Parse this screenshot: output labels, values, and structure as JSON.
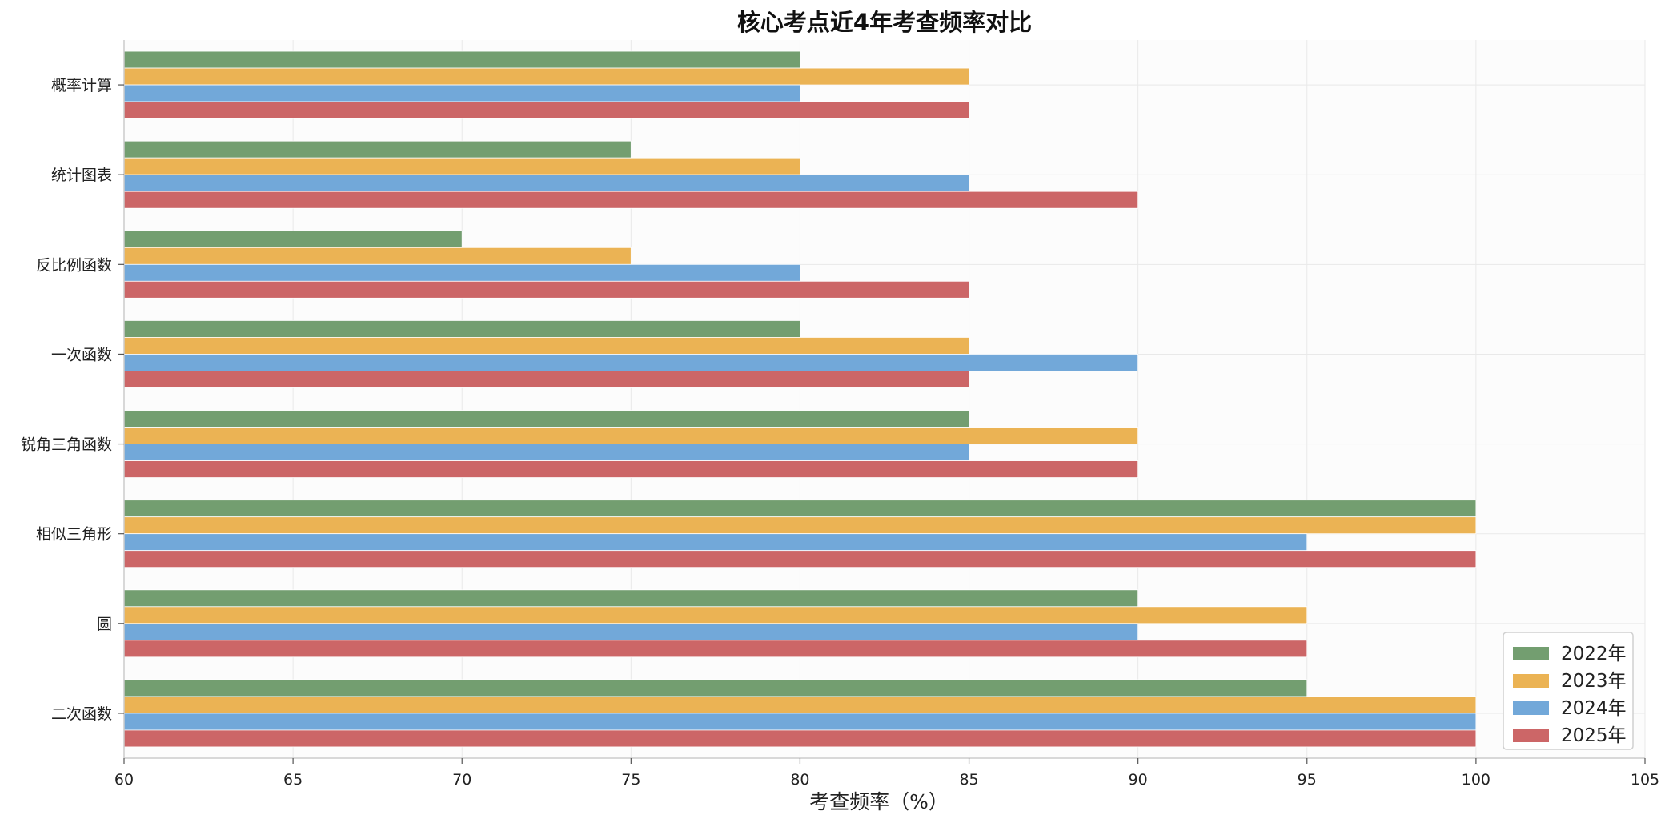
{
  "chart_data": {
    "type": "bar",
    "orientation": "horizontal",
    "title": "核心考点近4年考查频率对比",
    "xlabel": "考查频率（%）",
    "ylabel": "",
    "xlim": [
      60,
      105
    ],
    "xticks": [
      60,
      65,
      70,
      75,
      80,
      85,
      90,
      95,
      100,
      105
    ],
    "grid": true,
    "legend_position": "bottom-right",
    "categories": [
      "概率计算",
      "统计图表",
      "反比例函数",
      "一次函数",
      "锐角三角函数",
      "相似三角形",
      "圆",
      "二次函数"
    ],
    "series": [
      {
        "name": "2022年",
        "color": "#739e70",
        "values": [
          80,
          75,
          70,
          80,
          85,
          100,
          90,
          95
        ]
      },
      {
        "name": "2023年",
        "color": "#ebb354",
        "values": [
          85,
          80,
          75,
          85,
          90,
          100,
          95,
          100
        ]
      },
      {
        "name": "2024年",
        "color": "#72a8d9",
        "values": [
          80,
          85,
          80,
          90,
          85,
          95,
          90,
          100
        ]
      },
      {
        "name": "2025年",
        "color": "#cc6667",
        "values": [
          85,
          90,
          85,
          85,
          90,
          100,
          95,
          100
        ]
      }
    ]
  }
}
